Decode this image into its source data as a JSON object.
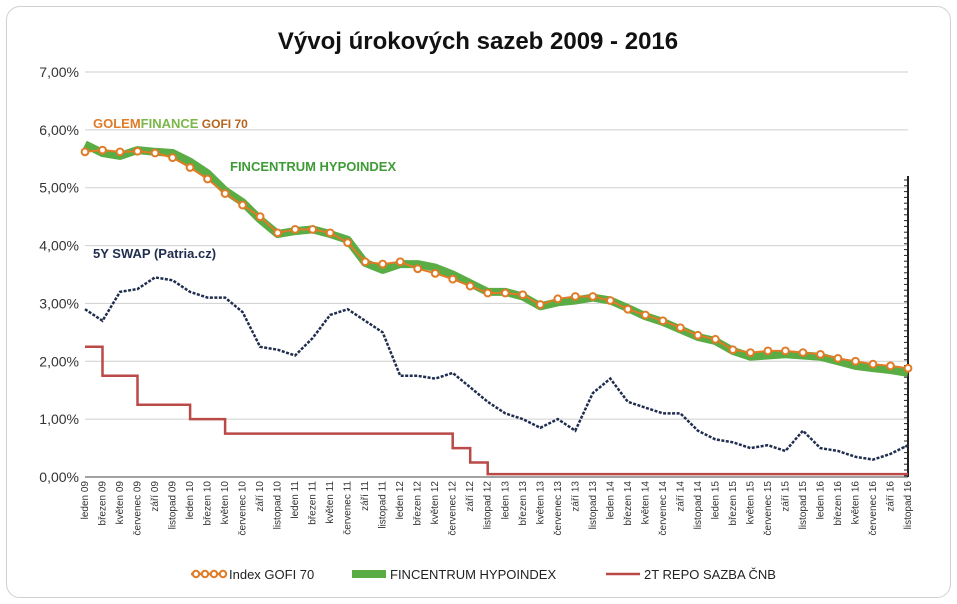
{
  "chart_data": {
    "type": "line",
    "title": "Vývoj úrokových sazeb 2009 - 2016",
    "ylim": [
      0,
      7
    ],
    "yticks": [
      "0,00%",
      "1,00%",
      "2,00%",
      "3,00%",
      "4,00%",
      "5,00%",
      "6,00%",
      "7,00%"
    ],
    "grid": "horizontal",
    "legend_position": "bottom",
    "categories": [
      "leden 09",
      "březen 09",
      "květen 09",
      "červenec 09",
      "září 09",
      "listopad 09",
      "leden 10",
      "březen 10",
      "květen 10",
      "červenec 10",
      "září 10",
      "listopad 10",
      "leden 11",
      "březen 11",
      "květen 11",
      "červenec 11",
      "září 11",
      "listopad 11",
      "leden 12",
      "březen 12",
      "květen 12",
      "červenec 12",
      "září 12",
      "listopad 12",
      "leden 13",
      "březen 13",
      "květen 13",
      "červenec 13",
      "září 13",
      "listopad 13",
      "leden 14",
      "březen 14",
      "květen 14",
      "červenec 14",
      "září 14",
      "listopad 14",
      "leden 15",
      "březen 15",
      "květen 15",
      "červenec 15",
      "září 15",
      "listopad 15",
      "leden 16",
      "březen 16",
      "květen 16",
      "červenec 16",
      "září 16",
      "listopad 16"
    ],
    "series": [
      {
        "name": "Index GOFI 70",
        "color": "#e07b27",
        "values": [
          5.62,
          5.65,
          5.62,
          5.63,
          5.6,
          5.52,
          5.35,
          5.15,
          4.9,
          4.7,
          4.5,
          4.22,
          4.28,
          4.28,
          4.22,
          4.05,
          3.72,
          3.68,
          3.72,
          3.6,
          3.52,
          3.42,
          3.3,
          3.18,
          3.18,
          3.15,
          2.98,
          3.08,
          3.12,
          3.12,
          3.05,
          2.9,
          2.8,
          2.7,
          2.58,
          2.45,
          2.38,
          2.2,
          2.15,
          2.18,
          2.18,
          2.15,
          2.12,
          2.05,
          2.0,
          1.95,
          1.92,
          1.88
        ]
      },
      {
        "name": "FINCENTRUM HYPOINDEX",
        "color": "#5aac44",
        "values": [
          5.75,
          5.6,
          5.55,
          5.65,
          5.62,
          5.6,
          5.45,
          5.25,
          4.95,
          4.75,
          4.45,
          4.2,
          4.25,
          4.28,
          4.2,
          4.1,
          3.7,
          3.58,
          3.68,
          3.68,
          3.62,
          3.5,
          3.35,
          3.2,
          3.2,
          3.12,
          2.95,
          3.02,
          3.05,
          3.1,
          3.05,
          2.92,
          2.78,
          2.68,
          2.55,
          2.42,
          2.35,
          2.18,
          2.08,
          2.1,
          2.12,
          2.1,
          2.08,
          2.0,
          1.92,
          1.88,
          1.85,
          1.8
        ]
      },
      {
        "name": "2T REPO SAZBA ČNB",
        "color": "#b94a48",
        "values": [
          2.25,
          1.75,
          1.75,
          1.25,
          1.25,
          1.25,
          1.0,
          1.0,
          0.75,
          0.75,
          0.75,
          0.75,
          0.75,
          0.75,
          0.75,
          0.75,
          0.75,
          0.75,
          0.75,
          0.75,
          0.75,
          0.5,
          0.25,
          0.05,
          0.05,
          0.05,
          0.05,
          0.05,
          0.05,
          0.05,
          0.05,
          0.05,
          0.05,
          0.05,
          0.05,
          0.05,
          0.05,
          0.05,
          0.05,
          0.05,
          0.05,
          0.05,
          0.05,
          0.05,
          0.05,
          0.05,
          0.05,
          0.05
        ]
      },
      {
        "name": "5Y SWAP (Patria.cz)",
        "color": "#1f2d4e",
        "values": [
          2.9,
          2.7,
          3.2,
          3.25,
          3.45,
          3.4,
          3.2,
          3.1,
          3.1,
          2.85,
          2.25,
          2.2,
          2.1,
          2.4,
          2.8,
          2.9,
          2.7,
          2.5,
          1.75,
          1.75,
          1.7,
          1.8,
          1.55,
          1.3,
          1.1,
          1.0,
          0.85,
          1.0,
          0.8,
          1.45,
          1.7,
          1.3,
          1.2,
          1.1,
          1.1,
          0.8,
          0.65,
          0.6,
          0.5,
          0.55,
          0.45,
          0.8,
          0.5,
          0.45,
          0.35,
          0.3,
          0.4,
          0.55
        ]
      }
    ],
    "annotations": {
      "gofi_prefix": "GOLEM",
      "gofi_brand": "FINANCE",
      "gofi_suffix": " GOFI 70",
      "fincentrum": "FINCENTRUM HYPOINDEX",
      "swap": "5Y SWAP (Patria.cz)"
    },
    "legend": [
      "Index GOFI 70",
      "FINCENTRUM HYPOINDEX",
      "2T REPO SAZBA ČNB"
    ]
  }
}
